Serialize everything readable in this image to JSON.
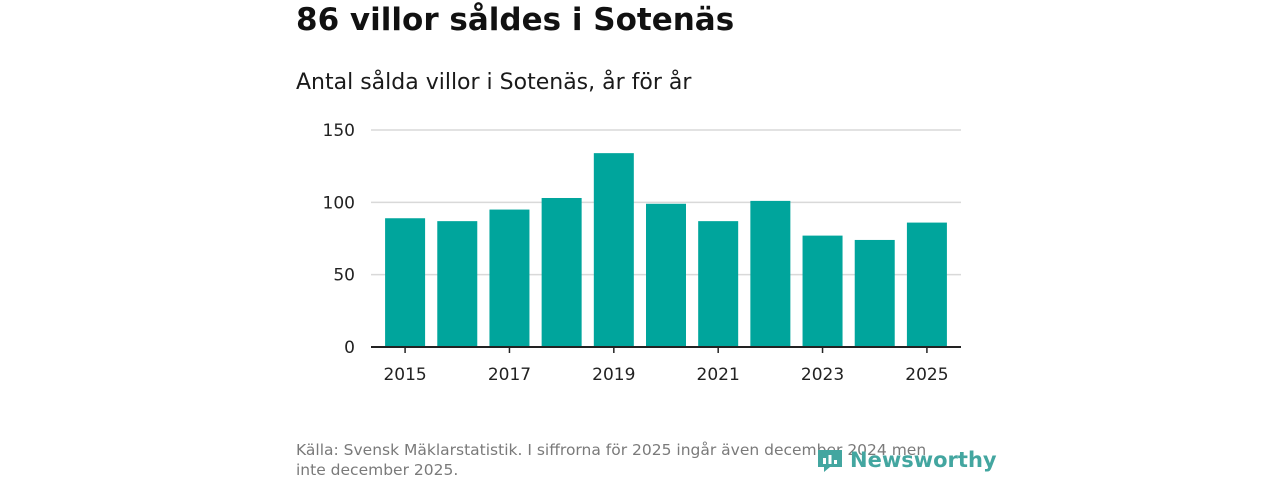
{
  "header": {
    "title": "86 villor såldes i Sotenäs",
    "subtitle": "Antal sålda villor i Sotenäs, år för år"
  },
  "chart_data": {
    "type": "bar",
    "title": "Antal sålda villor i Sotenäs, år för år",
    "xlabel": "",
    "ylabel": "",
    "categories": [
      "2015",
      "2016",
      "2017",
      "2018",
      "2019",
      "2020",
      "2021",
      "2022",
      "2023",
      "2024",
      "2025"
    ],
    "values": [
      89,
      87,
      95,
      103,
      134,
      99,
      87,
      101,
      77,
      74,
      86
    ],
    "x_tick_labels": [
      "2015",
      "2017",
      "2019",
      "2021",
      "2023",
      "2025"
    ],
    "y_ticks": [
      0,
      50,
      100,
      150
    ],
    "ylim": [
      0,
      150
    ],
    "grid": true,
    "bar_color": "#00a59c"
  },
  "footer": {
    "source": "Källa: Svensk Mäklarstatistik. I siffrorna för 2025 ingår även december 2024 men inte december 2025.",
    "brand": "Newsworthy",
    "brand_icon": "newsworthy-logo-icon"
  },
  "colors": {
    "bar": "#00a59c",
    "brand": "#43a6a0",
    "grid": "#d9d9d9",
    "axis": "#222222"
  }
}
